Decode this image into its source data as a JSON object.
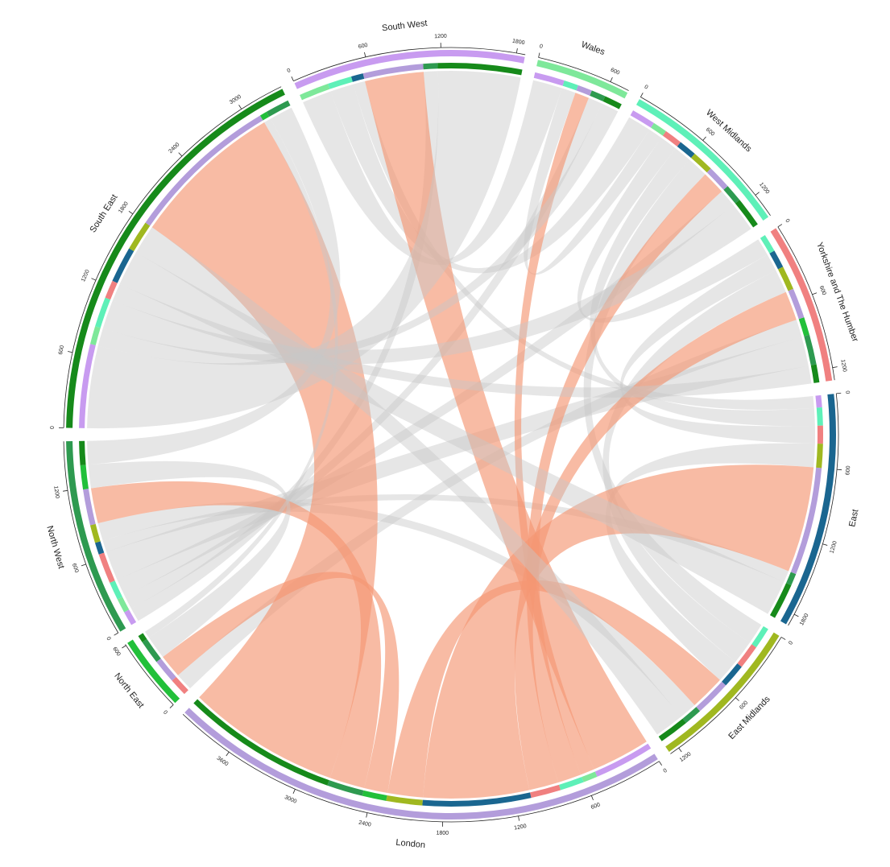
{
  "chart_data": {
    "type": "chord",
    "highlight": "London",
    "highlight_color": "rgba(244,150,115,0.65)",
    "chord_color": "rgba(200,200,200,0.45)",
    "sectors": [
      {
        "name": "South West",
        "color": "#c89bf0",
        "ticks": [
          0,
          600,
          1200,
          1800
        ]
      },
      {
        "name": "Wales",
        "color": "#7ee89a",
        "ticks": [
          0,
          600
        ]
      },
      {
        "name": "West Midlands",
        "color": "#5ef0b8",
        "ticks": [
          0,
          600,
          1200
        ]
      },
      {
        "name": "Yorkshire and The Humber",
        "color": "#f08080",
        "ticks": [
          0,
          600,
          1200
        ]
      },
      {
        "name": "East",
        "color": "#1a6690",
        "ticks": [
          0,
          600,
          1200,
          1800
        ]
      },
      {
        "name": "East Midlands",
        "color": "#a0b820",
        "ticks": [
          0,
          600,
          1200
        ]
      },
      {
        "name": "London",
        "color": "#b39ddb",
        "ticks": [
          0,
          600,
          1200,
          1800,
          2400,
          3000,
          3600
        ]
      },
      {
        "name": "North East",
        "color": "#22c03a",
        "ticks": [
          0,
          600
        ]
      },
      {
        "name": "North West",
        "color": "#2e9a50",
        "ticks": [
          0,
          600,
          1200
        ]
      },
      {
        "name": "South East",
        "color": "#168a1a",
        "ticks": [
          0,
          600,
          1200,
          1800,
          2400,
          3000
        ]
      }
    ],
    "matrix": [
      [
        0,
        250,
        200,
        0,
        100,
        0,
        0,
        0,
        120,
        0
      ],
      [
        0,
        0,
        0,
        0,
        0,
        0,
        0,
        0,
        120,
        0
      ],
      [
        0,
        120,
        0,
        150,
        150,
        180,
        0,
        0,
        150,
        0
      ],
      [
        0,
        0,
        0,
        0,
        150,
        200,
        0,
        150,
        250,
        0
      ],
      [
        0,
        0,
        0,
        0,
        0,
        200,
        0,
        0,
        100,
        0
      ],
      [
        0,
        0,
        0,
        0,
        0,
        0,
        0,
        0,
        150,
        0
      ],
      [
        500,
        120,
        200,
        250,
        900,
        300,
        0,
        200,
        300,
        1300
      ],
      [
        0,
        0,
        0,
        0,
        0,
        0,
        0,
        0,
        200,
        0
      ],
      [
        0,
        0,
        0,
        0,
        0,
        0,
        0,
        0,
        0,
        0
      ],
      [
        700,
        150,
        250,
        150,
        300,
        250,
        0,
        60,
        200,
        0
      ]
    ]
  }
}
